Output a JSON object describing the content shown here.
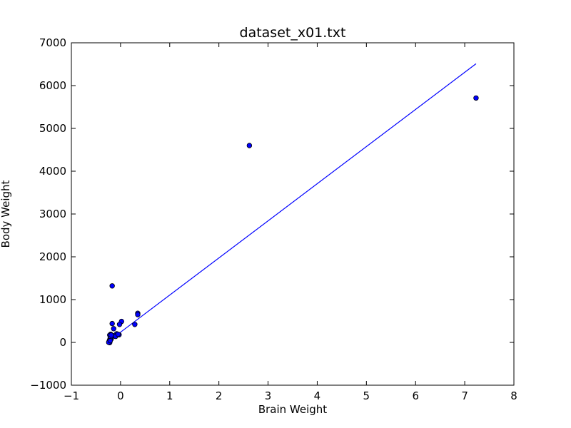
{
  "chart_data": {
    "type": "scatter",
    "title": "dataset_x01.txt",
    "xlabel": "Brain Weight",
    "ylabel": "Body Weight",
    "xlim": [
      -1,
      8
    ],
    "ylim": [
      -1000,
      7000
    ],
    "xticks": [
      -1,
      0,
      1,
      2,
      3,
      4,
      5,
      6,
      7,
      8
    ],
    "yticks": [
      -1000,
      0,
      1000,
      2000,
      3000,
      4000,
      5000,
      6000,
      7000
    ],
    "xtick_labels": [
      "−1",
      "0",
      "1",
      "2",
      "3",
      "4",
      "5",
      "6",
      "7",
      "8"
    ],
    "ytick_labels": [
      "−1000",
      "0",
      "1000",
      "2000",
      "3000",
      "4000",
      "5000",
      "6000",
      "7000"
    ],
    "grid": false,
    "marker_color": "#0000ff",
    "line_color": "#0000ff",
    "points": [
      [
        7.23,
        5710
      ],
      [
        2.62,
        4600
      ],
      [
        -0.17,
        1320
      ],
      [
        0.35,
        680
      ],
      [
        0.35,
        650
      ],
      [
        0.29,
        420
      ],
      [
        0.02,
        490
      ],
      [
        -0.02,
        420
      ],
      [
        -0.03,
        180
      ],
      [
        -0.17,
        440
      ],
      [
        -0.14,
        320
      ],
      [
        -0.08,
        200
      ],
      [
        -0.2,
        190
      ],
      [
        -0.22,
        170
      ],
      [
        -0.16,
        150
      ],
      [
        -0.18,
        120
      ],
      [
        -0.21,
        100
      ],
      [
        -0.19,
        80
      ],
      [
        -0.22,
        60
      ],
      [
        -0.23,
        30
      ],
      [
        -0.22,
        20
      ],
      [
        -0.23,
        10
      ],
      [
        -0.23,
        0
      ],
      [
        -0.22,
        -5
      ],
      [
        -0.21,
        50
      ],
      [
        -0.2,
        130
      ],
      [
        -0.12,
        160
      ],
      [
        -0.1,
        140
      ],
      [
        -0.05,
        190
      ],
      [
        -0.24,
        2
      ],
      [
        -0.21,
        40
      ],
      [
        -0.19,
        170
      ]
    ],
    "fit_line": {
      "x": [
        -0.24,
        7.23
      ],
      "y": [
        30,
        6510
      ]
    }
  }
}
